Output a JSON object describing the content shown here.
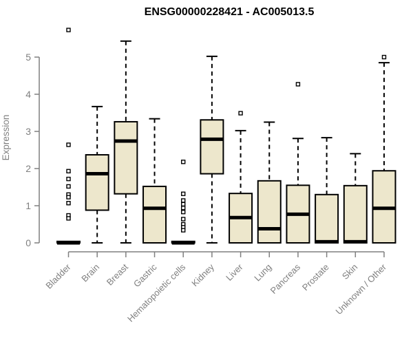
{
  "chart_data": {
    "type": "boxplot",
    "title": "ENSG00000228421 - AC005013.5",
    "xlabel": "",
    "ylabel": "Expression",
    "ylim": [
      0,
      5
    ],
    "yticks": [
      0,
      1,
      2,
      3,
      4,
      5
    ],
    "grid": false,
    "legend": null,
    "categories": [
      "Bladder",
      "Brain",
      "Breast",
      "Gastric",
      "Hematopoietic cells",
      "Kidney",
      "Liver",
      "Lung",
      "Pancreas",
      "Prostate",
      "Skin",
      "Unknown / Other"
    ],
    "boxes": [
      {
        "category": "Bladder",
        "q1": 0,
        "median": 0,
        "q3": 0.04,
        "whisker_low": 0,
        "whisker_high": 0.04,
        "outliers": [
          5.73,
          2.64,
          1.93,
          1.72,
          1.52,
          1.3,
          1.23,
          1.07,
          0.74,
          0.66
        ]
      },
      {
        "category": "Brain",
        "q1": 0.88,
        "median": 1.86,
        "q3": 2.37,
        "whisker_low": 0,
        "whisker_high": 3.67,
        "outliers": []
      },
      {
        "category": "Breast",
        "q1": 1.32,
        "median": 2.74,
        "q3": 3.26,
        "whisker_low": 0,
        "whisker_high": 5.43,
        "outliers": []
      },
      {
        "category": "Gastric",
        "q1": 0,
        "median": 0.93,
        "q3": 1.52,
        "whisker_low": 0,
        "whisker_high": 3.34,
        "outliers": []
      },
      {
        "category": "Hematopoietic cells",
        "q1": 0,
        "median": 0,
        "q3": 0.04,
        "whisker_low": 0,
        "whisker_high": 0.04,
        "outliers": [
          2.18,
          1.32,
          1.14,
          1.04,
          0.94,
          0.83,
          0.64,
          0.5,
          0.42,
          0.34
        ]
      },
      {
        "category": "Kidney",
        "q1": 1.86,
        "median": 2.79,
        "q3": 3.31,
        "whisker_low": 0,
        "whisker_high": 5.02,
        "outliers": []
      },
      {
        "category": "Liver",
        "q1": 0,
        "median": 0.68,
        "q3": 1.33,
        "whisker_low": 0,
        "whisker_high": 3.02,
        "outliers": [
          3.49
        ]
      },
      {
        "category": "Lung",
        "q1": 0,
        "median": 0.38,
        "q3": 1.67,
        "whisker_low": 0,
        "whisker_high": 3.25,
        "outliers": []
      },
      {
        "category": "Pancreas",
        "q1": 0,
        "median": 0.77,
        "q3": 1.55,
        "whisker_low": 0,
        "whisker_high": 2.81,
        "outliers": [
          4.27
        ]
      },
      {
        "category": "Prostate",
        "q1": 0,
        "median": 0.03,
        "q3": 1.3,
        "whisker_low": 0,
        "whisker_high": 2.83,
        "outliers": []
      },
      {
        "category": "Skin",
        "q1": 0,
        "median": 0.03,
        "q3": 1.54,
        "whisker_low": 0,
        "whisker_high": 2.4,
        "outliers": []
      },
      {
        "category": "Unknown / Other",
        "q1": 0,
        "median": 0.93,
        "q3": 1.94,
        "whisker_low": 0,
        "whisker_high": 4.85,
        "outliers": [
          5.0
        ]
      }
    ],
    "colors": {
      "box_fill": "#ede7cc",
      "box_stroke": "#000000",
      "median": "#000000",
      "whisker": "#000000",
      "outlier_stroke": "#000000",
      "axis": "#7f7f7f",
      "title": "#000000",
      "background": "#ffffff"
    }
  }
}
